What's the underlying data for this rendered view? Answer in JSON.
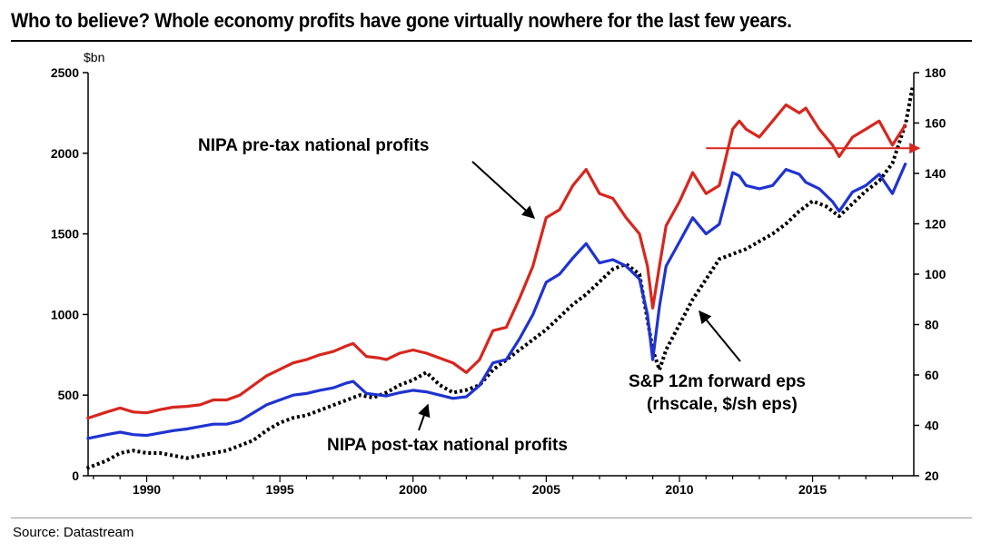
{
  "title": "Who to believe? Whole economy profits have gone virtually nowhere for the last few years.",
  "source": "Source: Datastream",
  "chart_data": {
    "type": "line",
    "title": "Who to believe? Whole economy profits have gone virtually nowhere for the last few years.",
    "xlabel": "",
    "ylabel": "$bn",
    "y_left_unit": "$bn",
    "xlim": [
      1987.8,
      2018.8
    ],
    "ylim": [
      0,
      2500
    ],
    "ylim_right": [
      20,
      180
    ],
    "x_ticks": [
      "1990",
      "1995",
      "2000",
      "2005",
      "2010",
      "2015"
    ],
    "x_tick_values": [
      1990,
      1995,
      2000,
      2005,
      2010,
      2015
    ],
    "y_ticks_left": [
      "0",
      "500",
      "1000",
      "1500",
      "2000",
      "2500"
    ],
    "y_tick_values_left": [
      0,
      500,
      1000,
      1500,
      2000,
      2500
    ],
    "y_ticks_right": [
      "20",
      "40",
      "60",
      "80",
      "100",
      "120",
      "140",
      "160",
      "180"
    ],
    "y_tick_values_right": [
      20,
      40,
      60,
      80,
      100,
      120,
      140,
      160,
      180
    ],
    "series": [
      {
        "name": "NIPA pre-tax national profits",
        "axis": "left",
        "color": "#d7261e",
        "style": "solid",
        "x": [
          1987.75,
          1988.5,
          1989.0,
          1989.5,
          1990.0,
          1990.5,
          1991.0,
          1991.5,
          1992.0,
          1992.5,
          1993.0,
          1993.5,
          1994.0,
          1994.5,
          1995.0,
          1995.5,
          1996.0,
          1996.5,
          1997.0,
          1997.5,
          1997.75,
          1998.25,
          1998.75,
          1999.0,
          1999.5,
          2000.0,
          2000.5,
          2001.0,
          2001.5,
          2002.0,
          2002.5,
          2003.0,
          2003.5,
          2004.0,
          2004.5,
          2005.0,
          2005.5,
          2006.0,
          2006.5,
          2007.0,
          2007.5,
          2008.0,
          2008.5,
          2008.8,
          2009.0,
          2009.25,
          2009.5,
          2010.0,
          2010.5,
          2011.0,
          2011.5,
          2012.0,
          2012.25,
          2012.5,
          2013.0,
          2013.5,
          2014.0,
          2014.5,
          2014.75,
          2015.25,
          2015.75,
          2016.0,
          2016.5,
          2017.0,
          2017.5,
          2018.0,
          2018.5
        ],
        "values": [
          355,
          395,
          420,
          395,
          390,
          410,
          425,
          430,
          440,
          470,
          470,
          500,
          560,
          620,
          660,
          700,
          720,
          750,
          770,
          805,
          820,
          740,
          730,
          720,
          760,
          780,
          760,
          730,
          700,
          640,
          720,
          900,
          920,
          1100,
          1300,
          1600,
          1650,
          1800,
          1900,
          1750,
          1720,
          1600,
          1500,
          1300,
          1040,
          1300,
          1550,
          1700,
          1880,
          1750,
          1800,
          2150,
          2200,
          2150,
          2100,
          2200,
          2300,
          2250,
          2280,
          2150,
          2050,
          1980,
          2100,
          2150,
          2200,
          2050,
          2180
        ]
      },
      {
        "name": "NIPA post-tax national profits",
        "axis": "left",
        "color": "#1f33d0",
        "style": "solid",
        "x": [
          1987.75,
          1988.5,
          1989.0,
          1989.5,
          1990.0,
          1990.5,
          1991.0,
          1991.5,
          1992.0,
          1992.5,
          1993.0,
          1993.5,
          1994.0,
          1994.5,
          1995.0,
          1995.5,
          1996.0,
          1996.5,
          1997.0,
          1997.5,
          1997.75,
          1998.25,
          1998.75,
          1999.0,
          1999.5,
          2000.0,
          2000.5,
          2001.0,
          2001.5,
          2002.0,
          2002.5,
          2003.0,
          2003.5,
          2004.0,
          2004.5,
          2005.0,
          2005.5,
          2006.0,
          2006.5,
          2007.0,
          2007.5,
          2008.0,
          2008.5,
          2008.8,
          2009.0,
          2009.25,
          2009.5,
          2010.0,
          2010.5,
          2011.0,
          2011.5,
          2012.0,
          2012.25,
          2012.5,
          2013.0,
          2013.5,
          2014.0,
          2014.5,
          2014.75,
          2015.25,
          2015.75,
          2016.0,
          2016.5,
          2017.0,
          2017.5,
          2018.0,
          2018.5
        ],
        "values": [
          230,
          255,
          270,
          255,
          250,
          265,
          280,
          290,
          305,
          320,
          320,
          340,
          390,
          440,
          470,
          500,
          510,
          530,
          545,
          575,
          585,
          510,
          500,
          495,
          515,
          530,
          520,
          500,
          480,
          490,
          560,
          700,
          720,
          850,
          1000,
          1200,
          1250,
          1350,
          1440,
          1320,
          1340,
          1300,
          1220,
          1000,
          720,
          1050,
          1300,
          1450,
          1600,
          1500,
          1560,
          1880,
          1860,
          1800,
          1780,
          1800,
          1900,
          1870,
          1820,
          1780,
          1700,
          1640,
          1760,
          1800,
          1870,
          1750,
          1940
        ]
      },
      {
        "name": "S&P 12m forward eps (rhscale, $/sh eps)",
        "axis": "right",
        "color": "#000000",
        "style": "dotted",
        "x": [
          1987.75,
          1988.5,
          1989.0,
          1989.5,
          1990.0,
          1990.5,
          1991.0,
          1991.5,
          1992.0,
          1992.5,
          1993.0,
          1993.5,
          1994.0,
          1994.5,
          1995.0,
          1995.5,
          1996.0,
          1996.5,
          1997.0,
          1997.5,
          1998.0,
          1998.5,
          1999.0,
          1999.5,
          2000.0,
          2000.5,
          2001.0,
          2001.5,
          2002.0,
          2002.5,
          2003.0,
          2003.5,
          2004.0,
          2004.5,
          2005.0,
          2005.5,
          2006.0,
          2006.5,
          2007.0,
          2007.5,
          2008.0,
          2008.5,
          2009.0,
          2009.25,
          2009.5,
          2010.0,
          2010.5,
          2011.0,
          2011.5,
          2012.0,
          2012.5,
          2013.0,
          2013.5,
          2014.0,
          2014.5,
          2015.0,
          2015.5,
          2016.0,
          2016.5,
          2017.0,
          2017.5,
          2018.0,
          2018.5,
          2018.75
        ],
        "values": [
          23,
          26,
          29,
          30,
          29,
          29,
          28,
          27,
          28,
          29,
          30,
          32,
          34,
          38,
          41,
          43,
          44,
          46,
          48,
          50,
          52,
          51,
          53,
          56,
          58,
          61,
          56,
          53,
          54,
          56,
          62,
          66,
          70,
          74,
          78,
          83,
          88,
          92,
          97,
          102,
          104,
          100,
          70,
          62,
          70,
          80,
          90,
          98,
          106,
          108,
          110,
          113,
          116,
          120,
          125,
          129,
          127,
          123,
          128,
          133,
          137,
          144,
          160,
          174
        ]
      }
    ],
    "annotations": [
      "NIPA pre-tax national profits",
      "NIPA post-tax national profits",
      "S&P 12m forward eps",
      "(rhscale, $/sh eps)"
    ],
    "reference_arrow": {
      "axis": "right",
      "value": 150,
      "x_start": 2011,
      "color": "#d7261e"
    },
    "legend": "none",
    "grid": false
  }
}
